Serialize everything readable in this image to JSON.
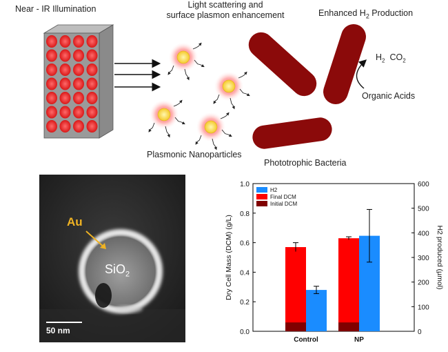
{
  "labels": {
    "illumination": "Near - IR Illumination",
    "scattering_line1": "Light scattering and",
    "scattering_line2": "surface plasmon enhancement",
    "enhanced_prefix": "Enhanced H",
    "enhanced_sub": "2",
    "enhanced_suffix": " Production",
    "h2_prefix": "H",
    "h2_sub": "2",
    "co2_prefix": "CO",
    "co2_sub": "2",
    "organic_acids": "Organic Acids",
    "nanoparticles": "Plasmonic Nanoparticles",
    "bacteria": "Phototrophic Bacteria"
  },
  "micrograph": {
    "au_label": "Au",
    "sio2_prefix": "SiO",
    "sio2_sub": "2",
    "scale_bar": "50 nm"
  },
  "colors": {
    "bacteria": "#8b0a0a",
    "nanoparticle_core": "#f7d640",
    "nanoparticle_glow": "#ff4d4d",
    "au_label": "#f0b323",
    "red_bar": "#ff0000",
    "dark_bar": "#800000",
    "blue_bar": "#1a8cff"
  },
  "chart_data": {
    "type": "bar",
    "categories": [
      "Control",
      "NP"
    ],
    "left_axis": {
      "label": "Dry Cell Mass (DCM) (g/L)",
      "range": [
        0.0,
        1.0
      ],
      "ticks": [
        "0.0",
        "0.2",
        "0.4",
        "0.6",
        "0.8",
        "1.0"
      ]
    },
    "right_axis": {
      "label": "H2 produced (µmol)",
      "range": [
        0,
        600
      ],
      "ticks": [
        "0",
        "100",
        "200",
        "300",
        "400",
        "500",
        "600"
      ]
    },
    "legend": [
      "H2",
      "Final DCM",
      "Initial DCM"
    ],
    "legend_placement": "top-left",
    "series": [
      {
        "name": "Final DCM",
        "axis": "left",
        "values": [
          0.57,
          0.63
        ],
        "errors": [
          0.03,
          0.01
        ]
      },
      {
        "name": "Initial DCM",
        "axis": "left",
        "values": [
          0.06,
          0.06
        ]
      },
      {
        "name": "H2",
        "axis": "right",
        "values": [
          168,
          388
        ],
        "errors": [
          15,
          107
        ]
      }
    ]
  }
}
